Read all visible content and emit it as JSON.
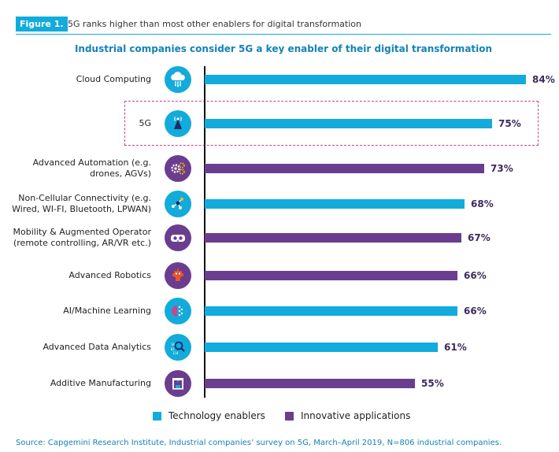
{
  "figure": {
    "tag": "Figure 1.",
    "caption": "5G ranks higher than most other enablers for digital transformation"
  },
  "chart_data": {
    "type": "bar",
    "orientation": "horizontal",
    "title": "Industrial companies consider 5G a key enabler of their digital transformation",
    "xlabel": "",
    "ylabel": "",
    "xlim": [
      0,
      100
    ],
    "value_suffix": "%",
    "grid": false,
    "legend_position": "bottom",
    "highlighted_category": "5G",
    "colors": {
      "Technology enablers": "#12abdb",
      "Innovative applications": "#6b3d8f",
      "highlight_box": "#c8468c"
    },
    "series_names": [
      "Technology enablers",
      "Innovative applications"
    ],
    "bars": [
      {
        "category": "Cloud Computing",
        "value": 84,
        "label": "84%",
        "series": "Technology enablers",
        "icon": "cloud-computing-icon"
      },
      {
        "category": "5G",
        "value": 75,
        "label": "75%",
        "series": "Technology enablers",
        "icon": "antenna-5g-icon"
      },
      {
        "category": "Advanced Automation (e.g. drones, AGVs)",
        "label_lines": [
          "Advanced Automation (e.g.",
          "drones, AGVs)"
        ],
        "value": 73,
        "label": "73%",
        "series": "Innovative applications",
        "icon": "gears-icon"
      },
      {
        "category": "Non-Cellular Connectivity (e.g. Wired, WI-FI, Bluetooth, LPWAN)",
        "label_lines": [
          "Non-Cellular Connectivity (e.g.",
          "Wired, WI-FI, Bluetooth, LPWAN)"
        ],
        "value": 68,
        "label": "68%",
        "series": "Technology enablers",
        "icon": "network-nodes-icon"
      },
      {
        "category": "Mobility & Augmented Operator (remote controlling, AR/VR etc.)",
        "label_lines": [
          "Mobility & Augmented Operator",
          "(remote controlling, AR/VR etc.)"
        ],
        "value": 67,
        "label": "67%",
        "series": "Innovative applications",
        "icon": "vr-headset-icon"
      },
      {
        "category": "Advanced Robotics",
        "value": 66,
        "label": "66%",
        "series": "Innovative applications",
        "icon": "robot-icon"
      },
      {
        "category": "AI/Machine Learning",
        "value": 66,
        "label": "66%",
        "series": "Technology enablers",
        "icon": "ai-brain-icon"
      },
      {
        "category": "Advanced Data Analytics",
        "value": 61,
        "label": "61%",
        "series": "Technology enablers",
        "icon": "data-magnifier-icon"
      },
      {
        "category": "Additive Manufacturing",
        "value": 55,
        "label": "55%",
        "series": "Innovative applications",
        "icon": "3d-printer-icon"
      }
    ]
  },
  "source": "Source: Capgemini Research Institute, Industrial companies’ survey on 5G, March–April 2019, N=806 industrial companies."
}
